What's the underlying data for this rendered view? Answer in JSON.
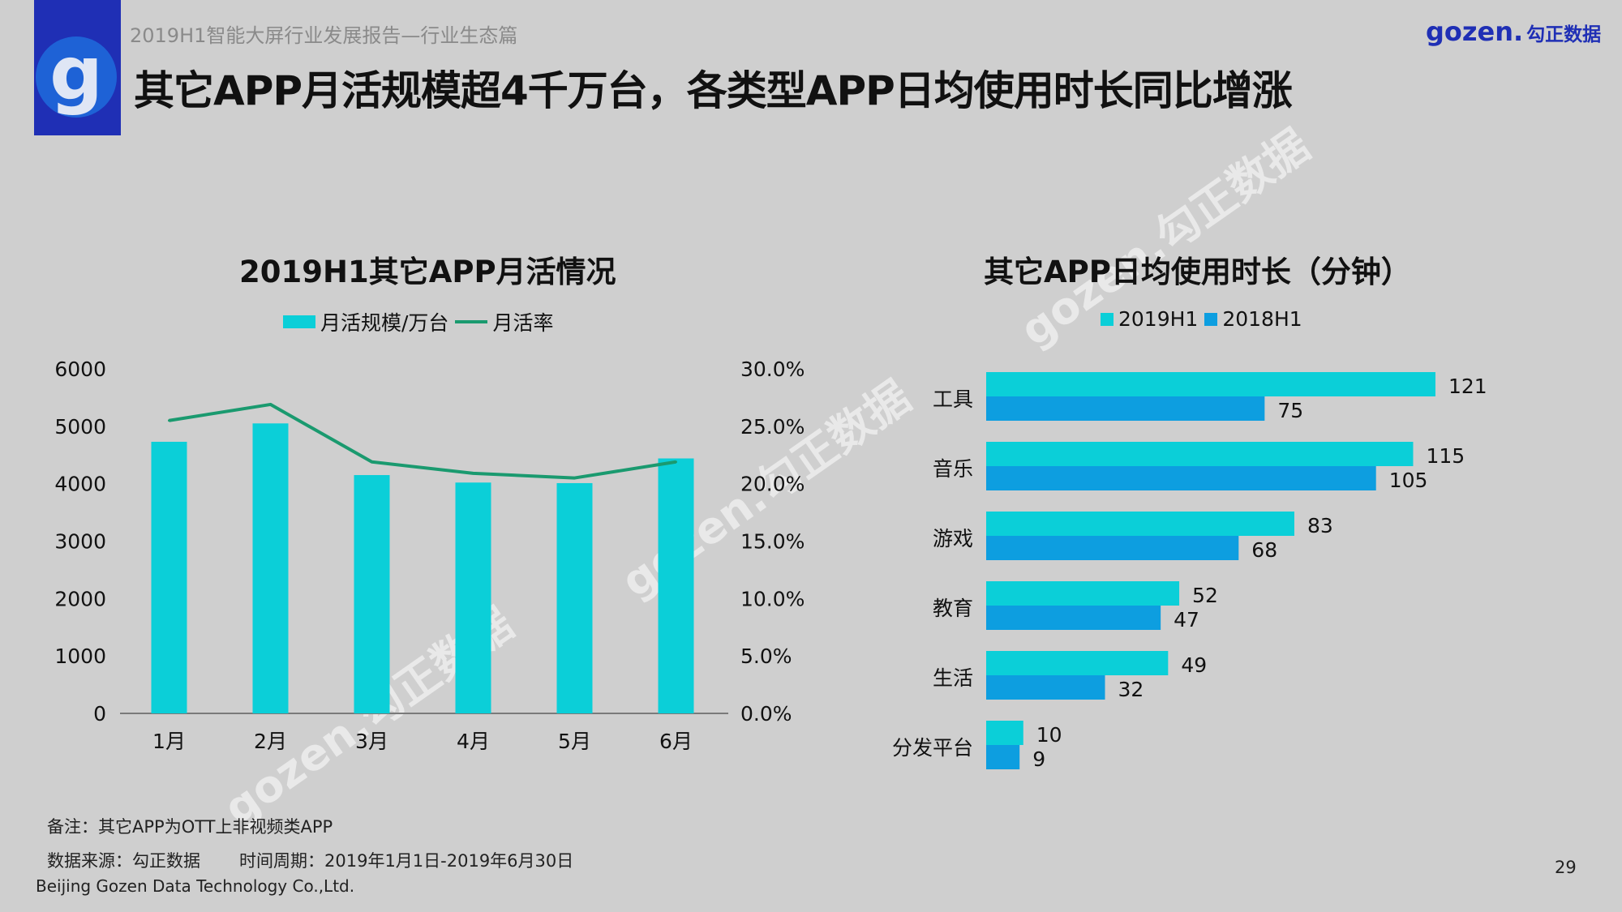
{
  "header": {
    "report_label": "2019H1智能大屏行业发展报告—行业生态篇",
    "main_title": "其它APP月活规模超4千万台，各类型APP日均使用时长同比增涨",
    "brand_name": "gozen.",
    "brand_cn": "勾正数据"
  },
  "colors": {
    "teal": "#0bcfd8",
    "blue": "#0d9ee0",
    "green_line": "#1a9a6f",
    "logo_bg": "#1f2fb5"
  },
  "icons": {
    "logo": "g-letter-logo"
  },
  "watermark": {
    "text": "gozen.勾正数据"
  },
  "left_chart": {
    "title": "2019H1其它APP月活情况",
    "legend": [
      "月活规模/万台",
      "月活率"
    ]
  },
  "right_chart": {
    "title": "其它APP日均使用时长（分钟）",
    "legend": [
      "2019H1",
      "2018H1"
    ]
  },
  "chart_data": [
    {
      "type": "bar",
      "title": "2019H1其它APP月活情况",
      "categories": [
        "1月",
        "2月",
        "3月",
        "4月",
        "5月",
        "6月"
      ],
      "series": [
        {
          "name": "月活规模/万台",
          "type": "bar",
          "axis": "left",
          "values": [
            4730,
            5050,
            4150,
            4020,
            4010,
            4440
          ]
        },
        {
          "name": "月活率",
          "type": "line",
          "axis": "right",
          "values": [
            25.5,
            26.9,
            21.9,
            20.9,
            20.5,
            21.9
          ]
        }
      ],
      "y_left": {
        "min": 0,
        "max": 6000,
        "ticks": [
          "0",
          "1000",
          "2000",
          "3000",
          "4000",
          "5000",
          "6000"
        ]
      },
      "y_right": {
        "min": 0,
        "max": 30,
        "ticks": [
          "0.0%",
          "5.0%",
          "10.0%",
          "15.0%",
          "20.0%",
          "25.0%",
          "30.0%"
        ]
      },
      "grid": false,
      "legend_position": "top"
    },
    {
      "type": "bar",
      "orientation": "horizontal",
      "title": "其它APP日均使用时长（分钟）",
      "categories": [
        "工具",
        "音乐",
        "游戏",
        "教育",
        "生活",
        "分发平台"
      ],
      "series": [
        {
          "name": "2019H1",
          "values": [
            121,
            115,
            83,
            52,
            49,
            10
          ]
        },
        {
          "name": "2018H1",
          "values": [
            75,
            105,
            68,
            47,
            32,
            9
          ]
        }
      ],
      "xlim": [
        0,
        135
      ],
      "grid": false,
      "legend_position": "top"
    }
  ],
  "footer": {
    "note": "备注：其它APP为OTT上非视频类APP",
    "source": "数据来源：勾正数据",
    "period": "时间周期：2019年1月1日-2019年6月30日",
    "company": "Beijing Gozen Data Technology Co.,Ltd.",
    "page_number": "29"
  }
}
